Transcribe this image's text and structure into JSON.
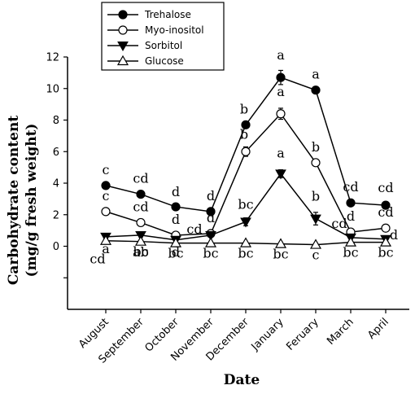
{
  "chart_data": {
    "type": "line",
    "title": "",
    "xlabel": "Date",
    "ylabel_line1": "Carbohydrate content",
    "ylabel_line2": "(mg/g fresh weight)",
    "categories": [
      "August",
      "September",
      "October",
      "November",
      "December",
      "January",
      "Feruary",
      "March",
      "April"
    ],
    "ylim": [
      -4,
      12
    ],
    "yticks": [
      0,
      2,
      4,
      6,
      8,
      10,
      12
    ],
    "grid": false,
    "legend_position": "top-left",
    "series": [
      {
        "name": "Trehalose",
        "marker": "filled-circle",
        "values": [
          3.85,
          3.3,
          2.5,
          2.2,
          7.7,
          10.7,
          9.9,
          2.75,
          2.6
        ],
        "errors": [
          0.15,
          0.1,
          0.1,
          0.1,
          0.2,
          0.45,
          0.2,
          0.1,
          0.1
        ],
        "labels": [
          "c",
          "cd",
          "d",
          "d",
          "b",
          "a",
          "a",
          "cd",
          "cd"
        ]
      },
      {
        "name": "Myo-inositol",
        "marker": "open-circle",
        "values": [
          2.2,
          1.5,
          0.7,
          0.8,
          6.0,
          8.4,
          5.3,
          0.9,
          1.15
        ],
        "errors": [
          0.15,
          0.1,
          0.05,
          0.05,
          0.3,
          0.35,
          0.1,
          0.05,
          0.05
        ],
        "labels": [
          "c",
          "cd",
          "d",
          "d",
          "b",
          "a",
          "b",
          "d",
          "cd"
        ]
      },
      {
        "name": "Sorbitol",
        "marker": "filled-triangle-down",
        "values": [
          0.6,
          0.7,
          0.4,
          0.7,
          1.55,
          4.6,
          1.75,
          0.55,
          0.45
        ],
        "errors": [
          0.1,
          0.1,
          0.05,
          0.05,
          0.25,
          0.25,
          0.4,
          0.05,
          0.05
        ],
        "labels": [
          "a",
          "ab",
          "d",
          "cd",
          "bc",
          "a",
          "b",
          "cd",
          "d"
        ]
      },
      {
        "name": "Glucose",
        "marker": "open-triangle-up",
        "values": [
          0.35,
          0.3,
          0.2,
          0.2,
          0.2,
          0.15,
          0.1,
          0.25,
          0.25
        ],
        "errors": [
          0.05,
          0.05,
          0.05,
          0.05,
          0.05,
          0.05,
          0.05,
          0.05,
          0.05
        ],
        "labels": [
          "cd",
          "bc",
          "bc",
          "bc",
          "bc",
          "bc",
          "c",
          "bc",
          "bc"
        ]
      }
    ]
  }
}
